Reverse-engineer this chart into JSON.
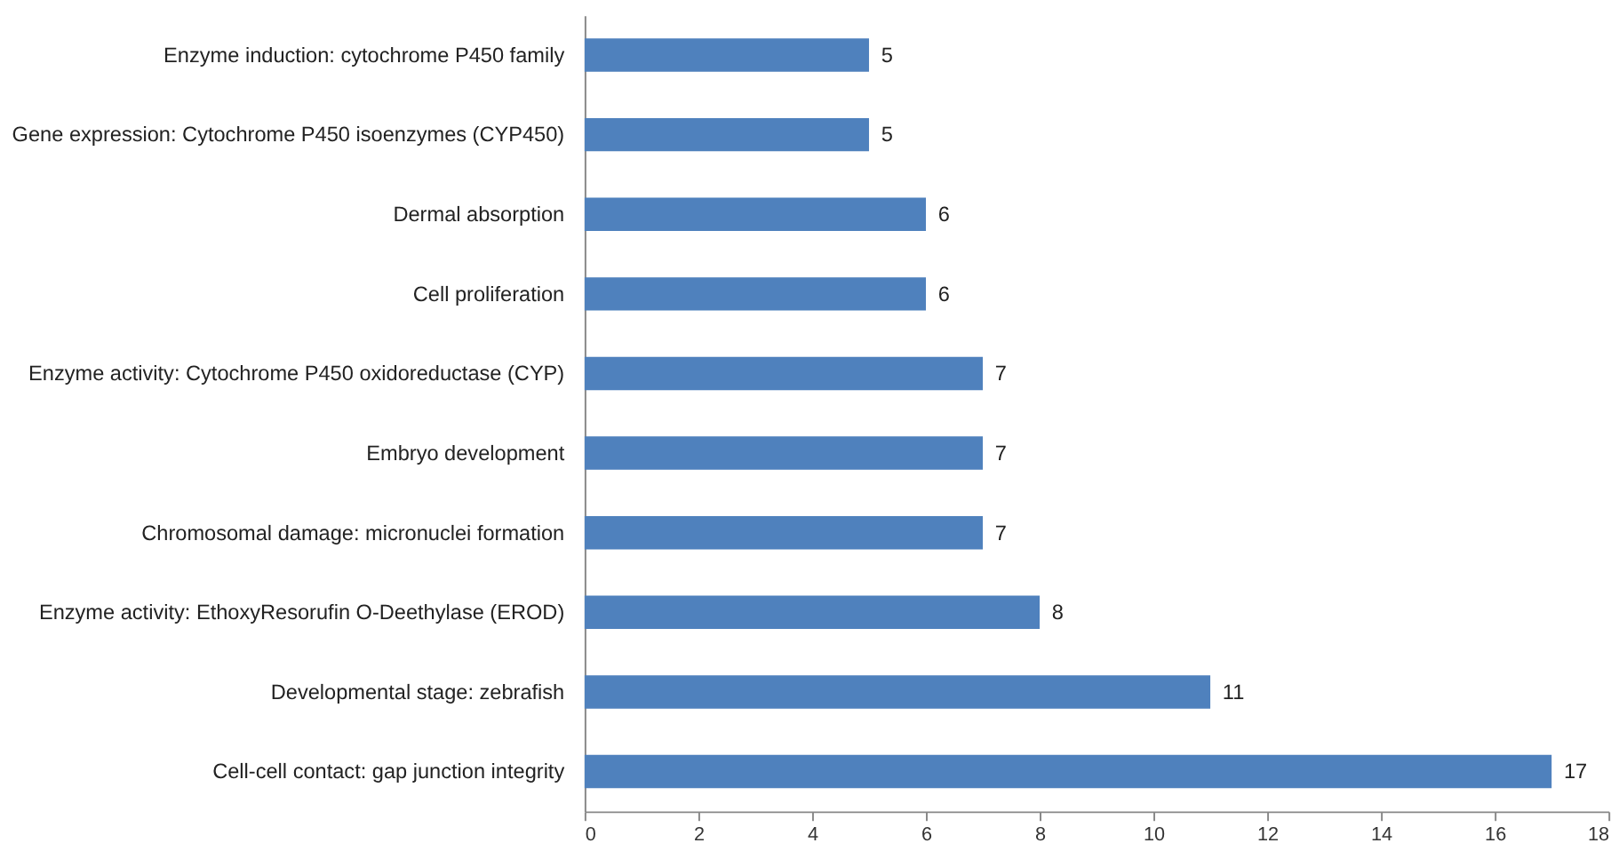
{
  "chart_data": {
    "type": "bar",
    "orientation": "horizontal",
    "categories": [
      "Enzyme induction: cytochrome P450 family",
      "Gene expression: Cytochrome P450 isoenzymes (CYP450)",
      "Dermal absorption",
      "Cell proliferation",
      "Enzyme activity: Cytochrome P450 oxidoreductase (CYP)",
      "Embryo development",
      "Chromosomal damage: micronuclei formation",
      "Enzyme activity: EthoxyResorufin O-Deethylase (EROD)",
      "Developmental stage: zebrafish",
      "Cell-cell contact: gap junction integrity"
    ],
    "values": [
      5,
      5,
      6,
      6,
      7,
      7,
      7,
      8,
      11,
      17
    ],
    "color": "#4f81bd",
    "xlim": [
      0,
      18
    ],
    "xticks": [
      0,
      2,
      4,
      6,
      8,
      10,
      12,
      14,
      16,
      18
    ],
    "data_labels": true,
    "grid": false
  }
}
